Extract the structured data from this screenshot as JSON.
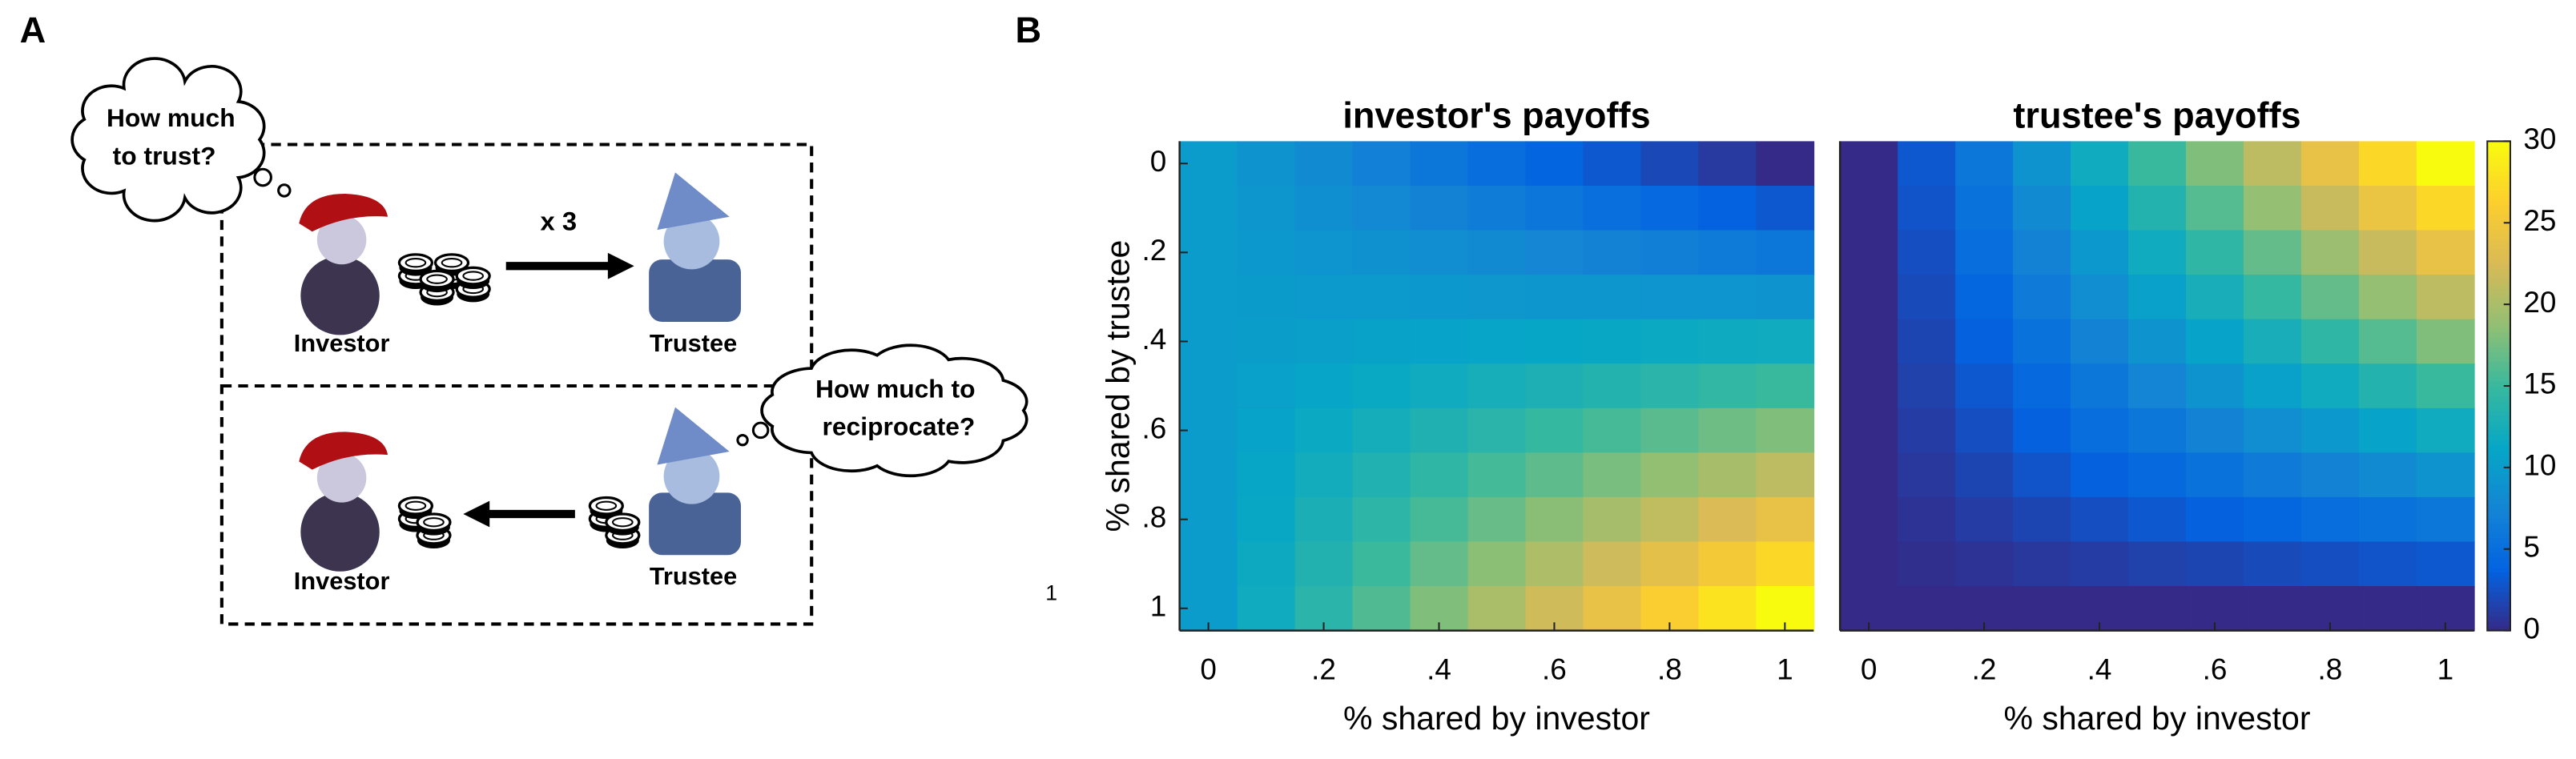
{
  "panel_labels": [
    "A",
    "B"
  ],
  "diagram": {
    "thought_investor": [
      "How much",
      "to trust?"
    ],
    "round1_investor": "Investor",
    "round1_trustee": "Trustee",
    "multiplier": "x 3",
    "thought_trustee": [
      "How much to",
      "reciprocate?"
    ],
    "round2_investor": "Investor",
    "round2_trustee": "Trustee",
    "annotation": "1"
  },
  "chart_data": [
    {
      "type": "heatmap",
      "title": "investor's payoffs",
      "xlabel": "% shared by investor",
      "ylabel": "% shared by trustee",
      "x": [
        0,
        0.1,
        0.2,
        0.3,
        0.4,
        0.5,
        0.6,
        0.7,
        0.8,
        0.9,
        1
      ],
      "y": [
        0,
        0.1,
        0.2,
        0.3,
        0.4,
        0.5,
        0.6,
        0.7,
        0.8,
        0.9,
        1
      ],
      "xlim": [
        -0.05,
        1.05
      ],
      "ylim": [
        -0.05,
        1.05
      ],
      "y_reversed": true,
      "xticks": [
        0,
        {
          "value": 0.2,
          "label": ".2"
        },
        {
          "value": 0.4,
          "label": ".4"
        },
        {
          "value": 0.6,
          "label": ".6"
        },
        {
          "value": 0.8,
          "label": ".8"
        },
        1
      ],
      "yticks": [
        0,
        {
          "value": 0.2,
          "label": ".2"
        },
        {
          "value": 0.4,
          "label": ".4"
        },
        {
          "value": 0.6,
          "label": ".6"
        },
        {
          "value": 0.8,
          "label": ".8"
        },
        1
      ],
      "colormap": "parula",
      "clim": [
        0,
        30
      ],
      "values": [
        [
          10,
          9,
          8,
          7,
          6,
          5,
          4,
          3,
          2,
          1,
          0
        ],
        [
          10,
          9.3,
          8.6,
          7.9,
          7.2,
          6.5,
          5.8,
          5.1,
          4.4,
          3.7,
          3
        ],
        [
          10,
          9.6,
          9.2,
          8.8,
          8.4,
          8,
          7.6,
          7.2,
          6.8,
          6.4,
          6
        ],
        [
          10,
          9.9,
          9.8,
          9.7,
          9.6,
          9.5,
          9.4,
          9.3,
          9.2,
          9.1,
          9
        ],
        [
          10,
          10.2,
          10.4,
          10.6,
          10.8,
          11,
          11.2,
          11.4,
          11.6,
          11.8,
          12
        ],
        [
          10,
          10.5,
          11,
          11.5,
          12,
          12.5,
          13,
          13.5,
          14,
          14.5,
          15
        ],
        [
          10,
          10.8,
          11.6,
          12.4,
          13.2,
          14,
          14.8,
          15.6,
          16.4,
          17.2,
          18
        ],
        [
          10,
          11.1,
          12.2,
          13.3,
          14.4,
          15.5,
          16.6,
          17.7,
          18.8,
          19.9,
          21
        ],
        [
          10,
          11.4,
          12.8,
          14.2,
          15.6,
          17,
          18.4,
          19.8,
          21.2,
          22.6,
          24
        ],
        [
          10,
          11.7,
          13.4,
          15.1,
          16.8,
          18.5,
          20.2,
          21.9,
          23.6,
          25.3,
          27
        ],
        [
          10,
          12,
          14,
          16,
          18,
          20,
          22,
          24,
          26,
          28,
          30
        ]
      ]
    },
    {
      "type": "heatmap",
      "title": "trustee's payoffs",
      "xlabel": "% shared by investor",
      "x": [
        0,
        0.1,
        0.2,
        0.3,
        0.4,
        0.5,
        0.6,
        0.7,
        0.8,
        0.9,
        1
      ],
      "y": [
        0,
        0.1,
        0.2,
        0.3,
        0.4,
        0.5,
        0.6,
        0.7,
        0.8,
        0.9,
        1
      ],
      "xlim": [
        -0.05,
        1.05
      ],
      "ylim": [
        -0.05,
        1.05
      ],
      "y_reversed": true,
      "xticks": [
        0,
        {
          "value": 0.2,
          "label": ".2"
        },
        {
          "value": 0.4,
          "label": ".4"
        },
        {
          "value": 0.6,
          "label": ".6"
        },
        {
          "value": 0.8,
          "label": ".8"
        },
        1
      ],
      "colormap": "parula",
      "clim": [
        0,
        30
      ],
      "colorbar_ticks": [
        0,
        5,
        10,
        15,
        20,
        25,
        30
      ],
      "values": [
        [
          0,
          3,
          6,
          9,
          12,
          15,
          18,
          21,
          24,
          27,
          30
        ],
        [
          0,
          2.7,
          5.4,
          8.1,
          10.8,
          13.5,
          16.2,
          18.9,
          21.6,
          24.3,
          27
        ],
        [
          0,
          2.4,
          4.8,
          7.2,
          9.6,
          12,
          14.4,
          16.8,
          19.2,
          21.6,
          24
        ],
        [
          0,
          2.1,
          4.2,
          6.3,
          8.4,
          10.5,
          12.6,
          14.7,
          16.8,
          18.9,
          21
        ],
        [
          0,
          1.8,
          3.6,
          5.4,
          7.2,
          9,
          10.8,
          12.6,
          14.4,
          16.2,
          18
        ],
        [
          0,
          1.5,
          3,
          4.5,
          6,
          7.5,
          9,
          10.5,
          12,
          13.5,
          15
        ],
        [
          0,
          1.2,
          2.4,
          3.6,
          4.8,
          6,
          7.2,
          8.4,
          9.6,
          10.8,
          12
        ],
        [
          0,
          0.9,
          1.8,
          2.7,
          3.6,
          4.5,
          5.4,
          6.3,
          7.2,
          8.1,
          9
        ],
        [
          0,
          0.6,
          1.2,
          1.8,
          2.4,
          3,
          3.6,
          4.2,
          4.8,
          5.4,
          6
        ],
        [
          0,
          0.3,
          0.6,
          0.9,
          1.2,
          1.5,
          1.8,
          2.1,
          2.4,
          2.7,
          3
        ],
        [
          0,
          0,
          0,
          0,
          0,
          0,
          0,
          0,
          0,
          0,
          0
        ]
      ]
    }
  ]
}
